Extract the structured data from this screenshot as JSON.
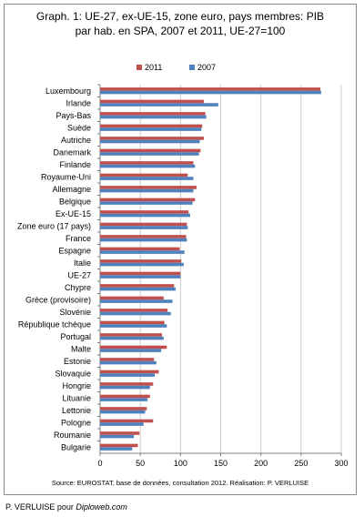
{
  "chart_data": {
    "type": "bar",
    "orientation": "horizontal",
    "title_line1": "Graph. 1:  UE-27, ex-UE-15, zone euro, pays membres: PIB",
    "title_line2": "par hab. en SPA, 2007 et 2011, UE-27=100",
    "legend_position": "top",
    "xlim": [
      0,
      300
    ],
    "xticks": [
      "0",
      "50",
      "100",
      "150",
      "200",
      "250",
      "300"
    ],
    "categories": [
      "Luxembourg",
      "Irlande",
      "Pays-Bas",
      "Suède",
      "Autriche",
      "Danemark",
      "Finlande",
      "Royaume-Uni",
      "Allemagne",
      "Belgique",
      "Ex-UE-15",
      "Zone euro (17 pays)",
      "France",
      "Espagne",
      "Italie",
      "UE-27",
      "Chypre",
      "Grèce (provisoire)",
      "Slovénie",
      "République tchèque",
      "Portugal",
      "Malte",
      "Estonie",
      "Slovaquie",
      "Hongrie",
      "Lituanie",
      "Lettonie",
      "Pologne",
      "Roumanie",
      "Bulgarie"
    ],
    "series": [
      {
        "name": "2011",
        "color": "#c0504d",
        "values": [
          274,
          129,
          131,
          127,
          129,
          125,
          116,
          109,
          120,
          118,
          110,
          108,
          107,
          99,
          101,
          100,
          92,
          79,
          84,
          80,
          77,
          83,
          67,
          73,
          66,
          62,
          58,
          66,
          49,
          47
        ]
      },
      {
        "name": "2007",
        "color": "#4f81bd",
        "values": [
          275,
          147,
          132,
          126,
          124,
          123,
          118,
          116,
          116,
          115,
          112,
          109,
          108,
          105,
          104,
          100,
          94,
          90,
          88,
          83,
          79,
          76,
          70,
          68,
          62,
          59,
          56,
          54,
          42,
          40
        ]
      }
    ],
    "grid": true
  },
  "footer": {
    "source": "Source: EUROSTAT, base de données, consultation 2012. Réalisation: P. VERLUISE",
    "credit_prefix": "P. VERLUISE pour ",
    "credit_site": "Diploweb.com"
  }
}
